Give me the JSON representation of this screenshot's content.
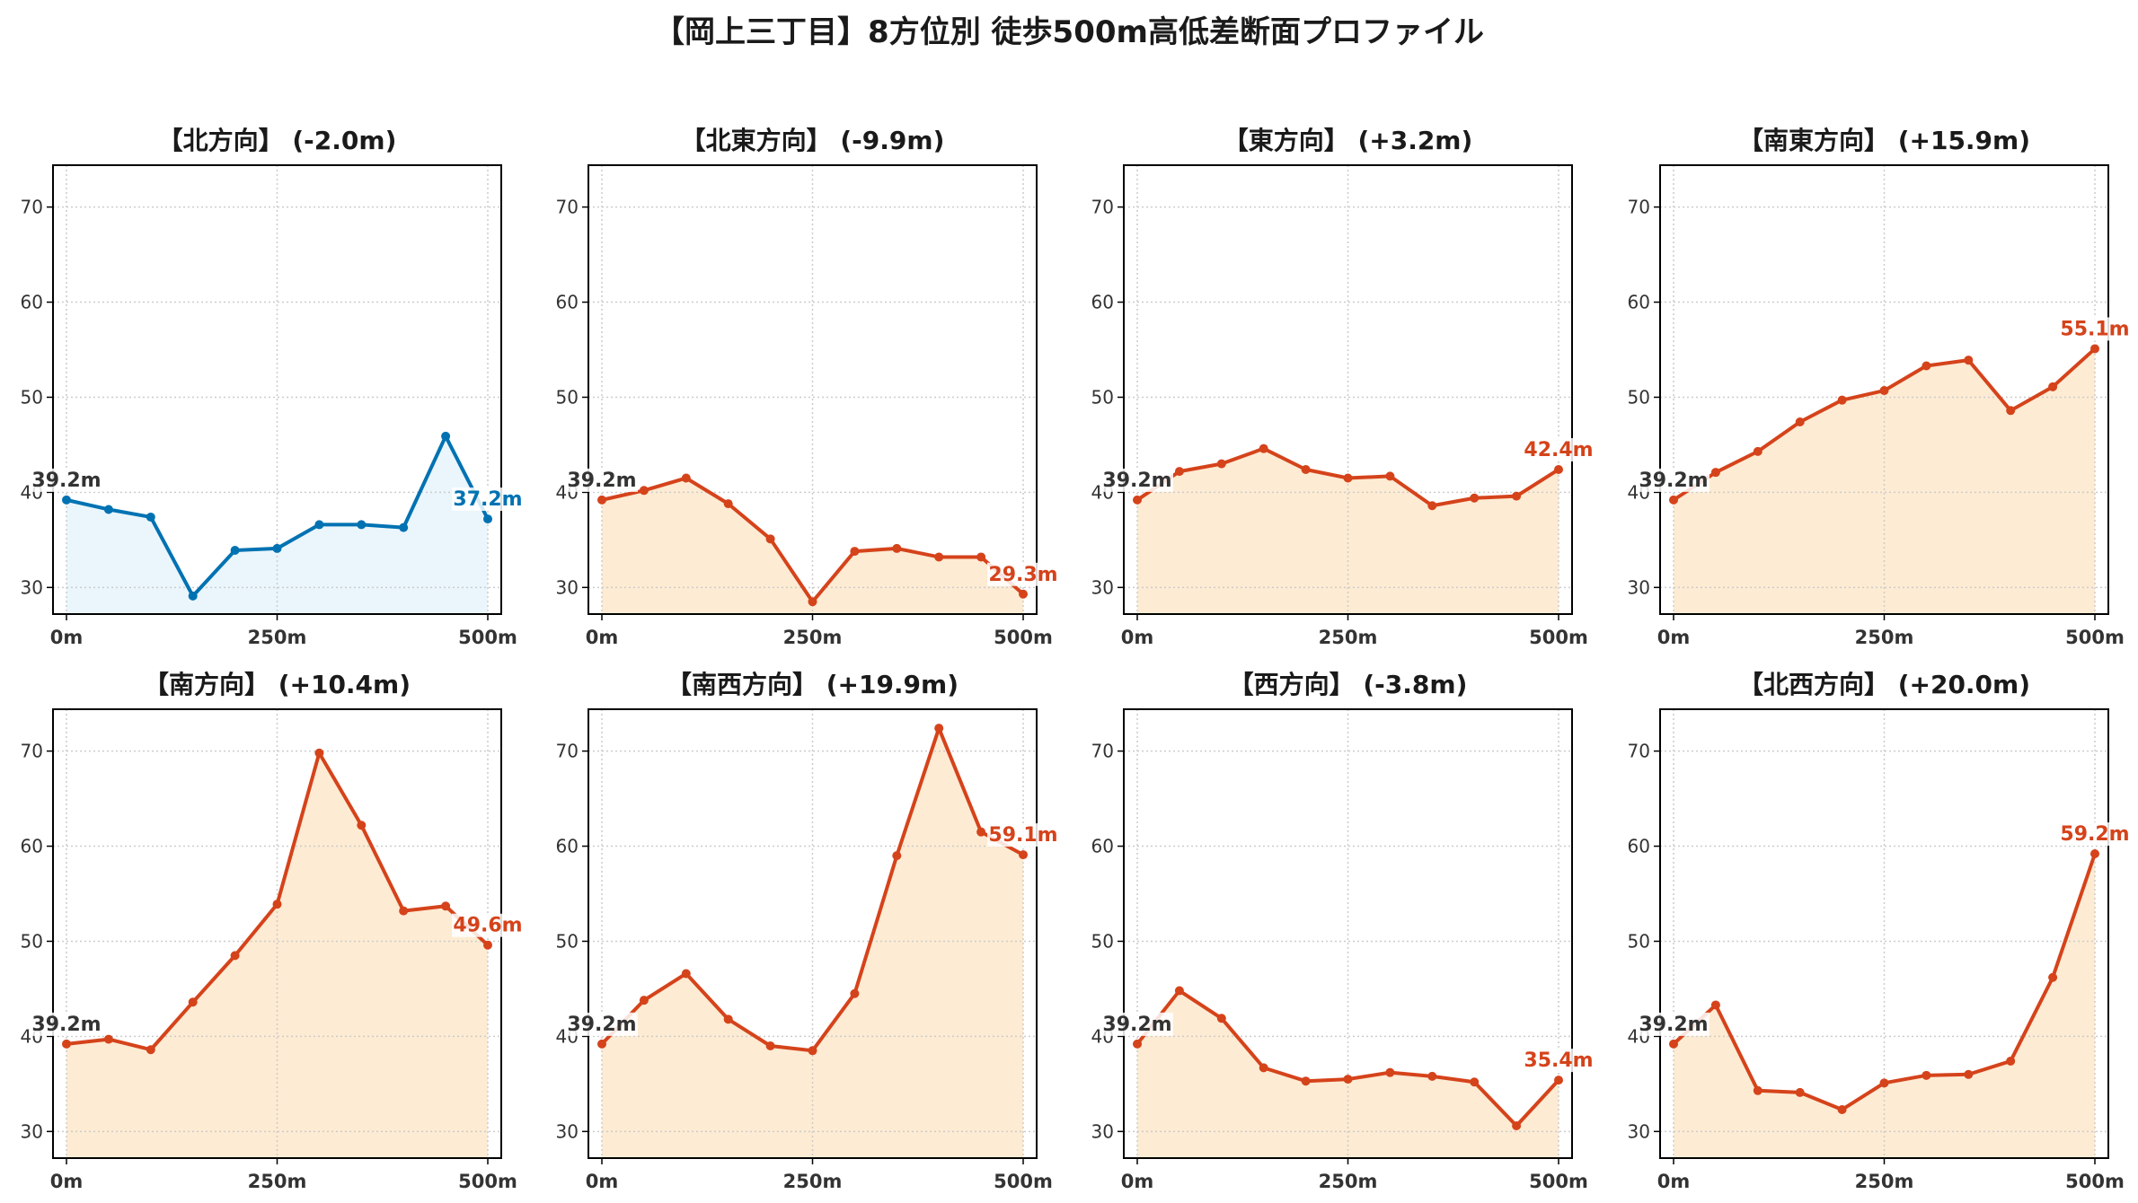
{
  "title": "【岡上三丁目】8方位別 徒歩500m高低差断面プロファイル",
  "colors": {
    "down": "#0072b2",
    "down_fill": "#eaf6fc",
    "up": "#d5431b",
    "up_fill": "#fdebd3",
    "grid": "#cccccc",
    "start_label": "#333333",
    "tick": "#333333"
  },
  "chart_data": [
    {
      "type": "area",
      "title": "【北方向】 (-2.0m)",
      "trend": "down",
      "x": [
        0,
        50,
        100,
        150,
        200,
        250,
        300,
        350,
        400,
        450,
        500
      ],
      "y": [
        39.2,
        38.2,
        37.4,
        29.1,
        33.9,
        34.1,
        36.6,
        36.6,
        36.3,
        45.9,
        37.2
      ],
      "xticks": [
        "0m",
        "250m",
        "500m"
      ],
      "yticks": [
        30,
        40,
        50,
        60,
        70
      ],
      "ylim": [
        27.2,
        74.4
      ],
      "start_label": "39.2m",
      "end_label": "37.2m",
      "grid": true
    },
    {
      "type": "area",
      "title": "【北東方向】 (-9.9m)",
      "trend": "up",
      "x": [
        0,
        50,
        100,
        150,
        200,
        250,
        300,
        350,
        400,
        450,
        500
      ],
      "y": [
        39.2,
        40.2,
        41.5,
        38.8,
        35.1,
        28.5,
        33.8,
        34.1,
        33.2,
        33.2,
        29.3
      ],
      "xticks": [
        "0m",
        "250m",
        "500m"
      ],
      "yticks": [
        30,
        40,
        50,
        60,
        70
      ],
      "ylim": [
        27.2,
        74.4
      ],
      "start_label": "39.2m",
      "end_label": "29.3m",
      "grid": true
    },
    {
      "type": "area",
      "title": "【東方向】 (+3.2m)",
      "trend": "up",
      "x": [
        0,
        50,
        100,
        150,
        200,
        250,
        300,
        350,
        400,
        450,
        500
      ],
      "y": [
        39.2,
        42.2,
        43.0,
        44.6,
        42.4,
        41.5,
        41.7,
        38.6,
        39.4,
        39.6,
        42.4
      ],
      "xticks": [
        "0m",
        "250m",
        "500m"
      ],
      "yticks": [
        30,
        40,
        50,
        60,
        70
      ],
      "ylim": [
        27.2,
        74.4
      ],
      "start_label": "39.2m",
      "end_label": "42.4m",
      "grid": true
    },
    {
      "type": "area",
      "title": "【南東方向】 (+15.9m)",
      "trend": "up",
      "x": [
        0,
        50,
        100,
        150,
        200,
        250,
        300,
        350,
        400,
        450,
        500
      ],
      "y": [
        39.2,
        42.1,
        44.3,
        47.4,
        49.7,
        50.7,
        53.3,
        53.9,
        48.6,
        51.1,
        55.1
      ],
      "xticks": [
        "0m",
        "250m",
        "500m"
      ],
      "yticks": [
        30,
        40,
        50,
        60,
        70
      ],
      "ylim": [
        27.2,
        74.4
      ],
      "start_label": "39.2m",
      "end_label": "55.1m",
      "grid": true
    },
    {
      "type": "area",
      "title": "【南方向】 (+10.4m)",
      "trend": "up",
      "x": [
        0,
        50,
        100,
        150,
        200,
        250,
        300,
        350,
        400,
        450,
        500
      ],
      "y": [
        39.2,
        39.7,
        38.6,
        43.6,
        48.5,
        53.9,
        69.8,
        62.2,
        53.2,
        53.7,
        49.6
      ],
      "xticks": [
        "0m",
        "250m",
        "500m"
      ],
      "yticks": [
        30,
        40,
        50,
        60,
        70
      ],
      "ylim": [
        27.2,
        74.4
      ],
      "start_label": "39.2m",
      "end_label": "49.6m",
      "grid": true
    },
    {
      "type": "area",
      "title": "【南西方向】 (+19.9m)",
      "trend": "up",
      "x": [
        0,
        50,
        100,
        150,
        200,
        250,
        300,
        350,
        400,
        450,
        500
      ],
      "y": [
        39.2,
        43.8,
        46.6,
        41.8,
        39.0,
        38.5,
        44.5,
        59.0,
        72.4,
        61.5,
        59.1
      ],
      "xticks": [
        "0m",
        "250m",
        "500m"
      ],
      "yticks": [
        30,
        40,
        50,
        60,
        70
      ],
      "ylim": [
        27.2,
        74.4
      ],
      "start_label": "39.2m",
      "end_label": "59.1m",
      "grid": true
    },
    {
      "type": "area",
      "title": "【西方向】 (-3.8m)",
      "trend": "up",
      "x": [
        0,
        50,
        100,
        150,
        200,
        250,
        300,
        350,
        400,
        450,
        500
      ],
      "y": [
        39.2,
        44.8,
        41.9,
        36.7,
        35.3,
        35.5,
        36.2,
        35.8,
        35.2,
        30.6,
        35.4
      ],
      "xticks": [
        "0m",
        "250m",
        "500m"
      ],
      "yticks": [
        30,
        40,
        50,
        60,
        70
      ],
      "ylim": [
        27.2,
        74.4
      ],
      "start_label": "39.2m",
      "end_label": "35.4m",
      "grid": true
    },
    {
      "type": "area",
      "title": "【北西方向】 (+20.0m)",
      "trend": "up",
      "x": [
        0,
        50,
        100,
        150,
        200,
        250,
        300,
        350,
        400,
        450,
        500
      ],
      "y": [
        39.2,
        43.3,
        34.3,
        34.1,
        32.3,
        35.1,
        35.9,
        36.0,
        37.4,
        46.2,
        59.2
      ],
      "xticks": [
        "0m",
        "250m",
        "500m"
      ],
      "yticks": [
        30,
        40,
        50,
        60,
        70
      ],
      "ylim": [
        27.2,
        74.4
      ],
      "start_label": "39.2m",
      "end_label": "59.2m",
      "grid": true
    }
  ]
}
